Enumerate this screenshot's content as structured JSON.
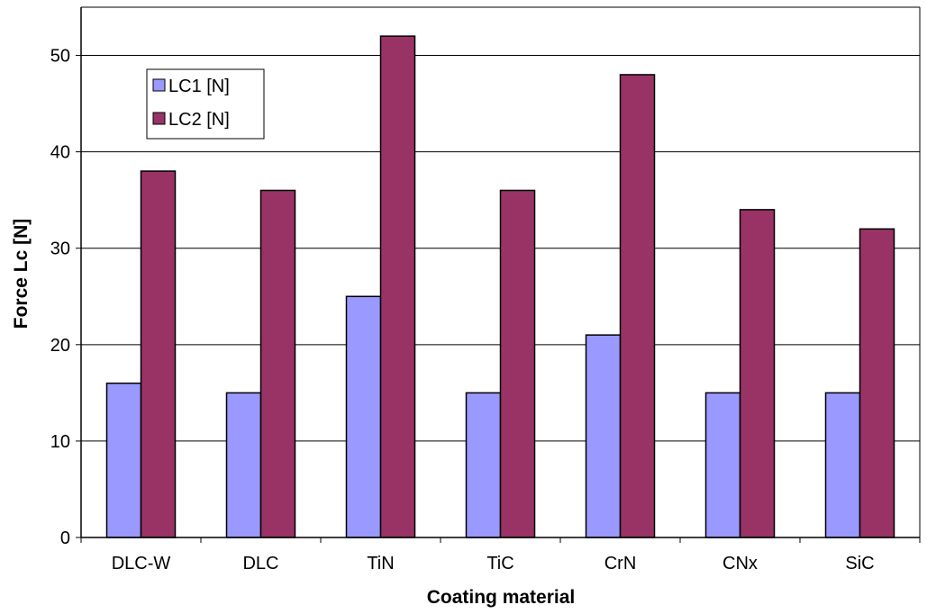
{
  "chart_data": {
    "type": "bar",
    "title": "",
    "xlabel": "Coating material",
    "ylabel": "Force Lc [N]",
    "categories": [
      "DLC-W",
      "DLC",
      "TiN",
      "TiC",
      "CrN",
      "CNx",
      "SiC"
    ],
    "series": [
      {
        "name": "LC1 [N]",
        "values": [
          16,
          15,
          25,
          15,
          21,
          15,
          15
        ],
        "color": "#9999ff"
      },
      {
        "name": "LC2 [N]",
        "values": [
          38,
          36,
          52,
          36,
          48,
          34,
          32
        ],
        "color": "#993366"
      }
    ],
    "ylim": [
      0,
      55
    ],
    "yticks": [
      0,
      10,
      20,
      30,
      40,
      50
    ],
    "grid": true,
    "legend": "top-left"
  }
}
